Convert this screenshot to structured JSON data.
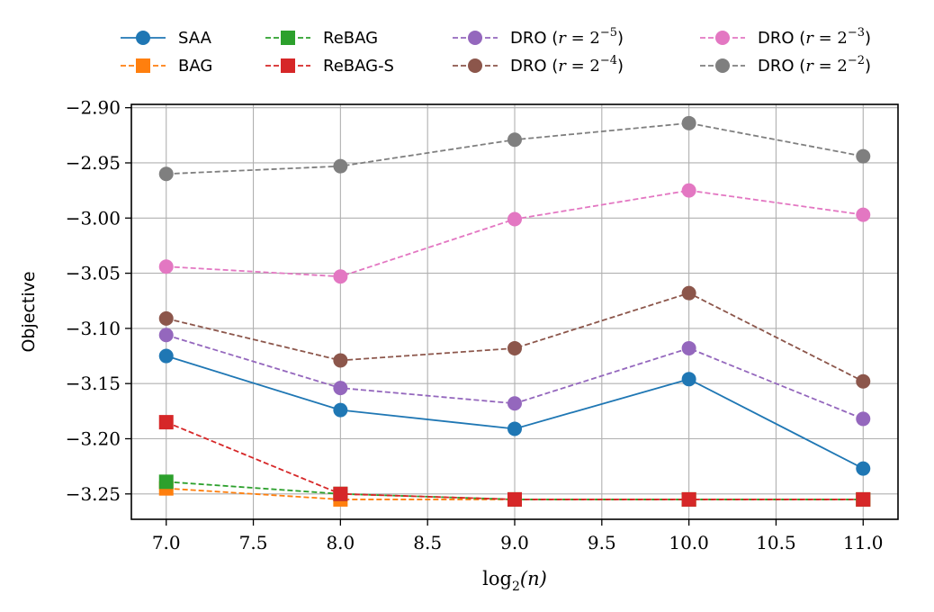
{
  "chart_data": {
    "type": "line",
    "title": "",
    "xlabel": "log₂(n)",
    "ylabel": "Objective",
    "xlim": [
      6.8,
      11.2
    ],
    "ylim": [
      -3.273,
      -2.897
    ],
    "xticks": [
      7.0,
      7.5,
      8.0,
      8.5,
      9.0,
      9.5,
      10.0,
      10.5,
      11.0
    ],
    "xtick_labels": [
      "7.0",
      "7.5",
      "8.0",
      "8.5",
      "9.0",
      "9.5",
      "10.0",
      "10.5",
      "11.0"
    ],
    "yticks": [
      -2.9,
      -2.95,
      -3.0,
      -3.05,
      -3.1,
      -3.15,
      -3.2,
      -3.25
    ],
    "ytick_labels": [
      "−2.90",
      "−2.95",
      "−3.00",
      "−3.05",
      "−3.10",
      "−3.15",
      "−3.20",
      "−3.25"
    ],
    "grid": true,
    "legend_placement": "top-outside",
    "x": [
      7,
      8,
      9,
      10,
      11
    ],
    "series": [
      {
        "name": "SAA",
        "color": "#1f77b4",
        "marker": "circle",
        "dash": "solid",
        "values": [
          -3.125,
          -3.174,
          -3.191,
          -3.146,
          -3.227
        ]
      },
      {
        "name": "BAG",
        "color": "#ff7f0e",
        "marker": "square",
        "dash": "dashed",
        "values": [
          -3.245,
          -3.255,
          -3.255,
          -3.255,
          -3.255
        ]
      },
      {
        "name": "ReBAG",
        "color": "#2ca02c",
        "marker": "square",
        "dash": "dashed",
        "values": [
          -3.239,
          -3.25,
          -3.255,
          -3.255,
          -3.255
        ]
      },
      {
        "name": "ReBAG-S",
        "color": "#d62728",
        "marker": "square",
        "dash": "dashed",
        "values": [
          -3.185,
          -3.25,
          -3.255,
          -3.255,
          -3.255
        ]
      },
      {
        "name": "DRO",
        "legend_base": "DRO",
        "legend_exp": "−5",
        "color": "#9467bd",
        "marker": "circle",
        "dash": "dashed",
        "values": [
          -3.106,
          -3.154,
          -3.168,
          -3.118,
          -3.182
        ]
      },
      {
        "name": "DRO",
        "legend_base": "DRO",
        "legend_exp": "−4",
        "color": "#8c564b",
        "marker": "circle",
        "dash": "dashed",
        "values": [
          -3.091,
          -3.129,
          -3.118,
          -3.068,
          -3.148
        ]
      },
      {
        "name": "DRO",
        "legend_base": "DRO",
        "legend_exp": "−3",
        "color": "#e377c2",
        "marker": "circle",
        "dash": "dashed",
        "values": [
          -3.044,
          -3.053,
          -3.001,
          -2.975,
          -2.997
        ]
      },
      {
        "name": "DRO",
        "legend_base": "DRO",
        "legend_exp": "−2",
        "color": "#7f7f7f",
        "marker": "circle",
        "dash": "dashed",
        "values": [
          -2.96,
          -2.953,
          -2.929,
          -2.914,
          -2.944
        ]
      }
    ]
  }
}
